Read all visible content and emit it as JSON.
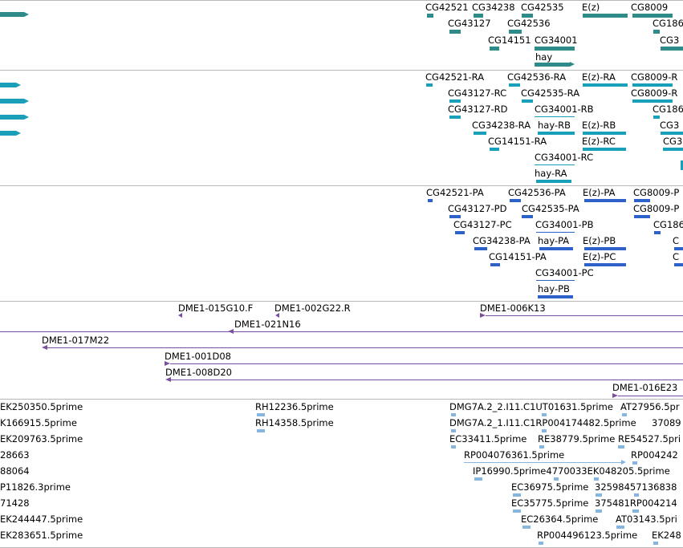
{
  "colors": {
    "gene": "#2f8a8a",
    "transcript": "#1a9fb8",
    "protein": "#2f62c9",
    "clone": "#7a4fa0",
    "est": "#86b6e0",
    "separator": "#b8b8b8"
  },
  "tracks": {
    "genes": {
      "labels": [
        "CG42521",
        "CG34238",
        "CG42535",
        "E(z)",
        "CG8009",
        "CG43127",
        "CG42536",
        "CG186",
        "CG14151",
        "CG34001",
        "CG3",
        "hay"
      ]
    },
    "transcripts": {
      "labels": [
        "CG42521-RA",
        "CG42536-RA",
        "E(z)-RA",
        "CG8009-R",
        "CG43127-RC",
        "CG42535-RA",
        "CG8009-R",
        "CG43127-RD",
        "CG34001-RB",
        "CG186",
        "CG34238-RA",
        "hay-RB",
        "E(z)-RB",
        "CG3",
        "CG14151-RA",
        "E(z)-RC",
        "CG3",
        "CG34001-RC",
        "hay-RA"
      ]
    },
    "proteins": {
      "labels": [
        "CG42521-PA",
        "CG42536-PA",
        "E(z)-PA",
        "CG8009-P",
        "CG43127-PD",
        "CG42535-PA",
        "CG8009-P",
        "CG43127-PC",
        "CG34001-PB",
        "CG186",
        "CG34238-PA",
        "hay-PA",
        "E(z)-PB",
        "C",
        "CG14151-PA",
        "E(z)-PC",
        "C",
        "CG34001-PC",
        "hay-PB"
      ]
    },
    "clones": {
      "labels": [
        "DME1-015G10.F",
        "DME1-002G22.R",
        "DME1-006K13",
        "DME1-021N16",
        "DME1-017M22",
        "DME1-001D08",
        "DME1-008D20",
        "DME1-016E23"
      ]
    },
    "ests": {
      "labels": [
        "EK250350.5prime",
        "RH12236.5prime",
        "DMG7A.2_2.I11.C1UT01631.5prime",
        "AT27956.5pr",
        "K166915.5prime",
        "RH14358.5prime",
        "DMG7A.2_1.I11.C1RP004174482.5prime",
        "37089",
        "EK209763.5prime",
        "EC33411.5prime",
        "RE38779.5prime",
        "RE54527.5pri",
        "28663",
        "RP004076361.5prime",
        "RP004242",
        "88064",
        "IP16990.5prime4770033EK048205.5prime",
        "P11826.3prime",
        "EC36975.5prime",
        "32598457136838",
        "71428",
        "EC35775.5prime",
        "375481RP004214",
        "EK244447.5prime",
        "EC26364.5prime",
        "AT03143.5pri",
        "EK283651.5prime",
        "RP004496123.5prime",
        "EK248"
      ]
    }
  }
}
